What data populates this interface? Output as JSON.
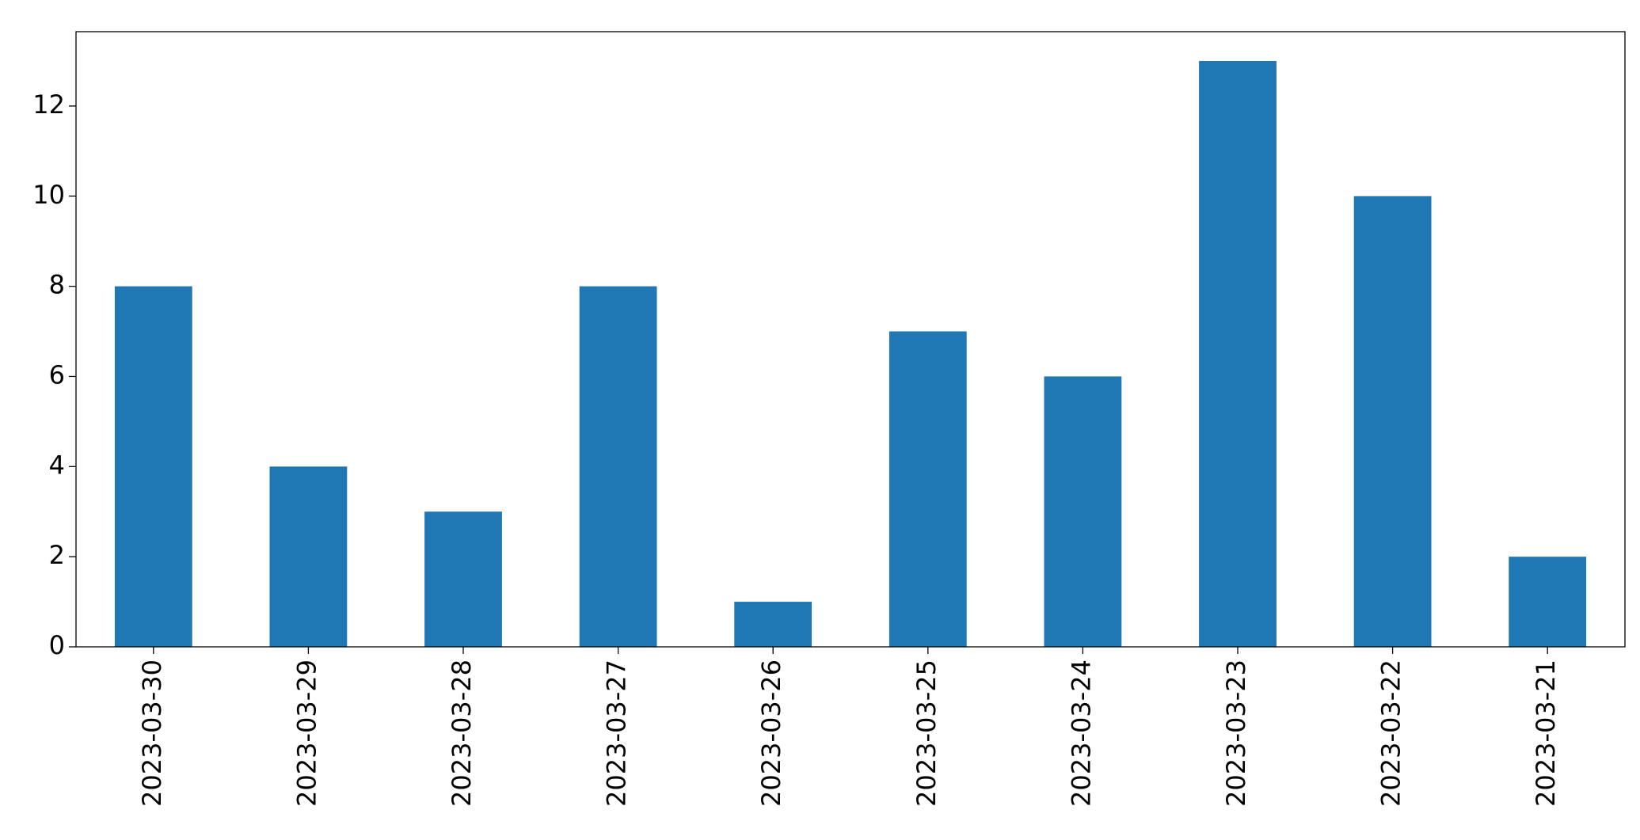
{
  "chart_data": {
    "type": "bar",
    "categories": [
      "2023-03-30",
      "2023-03-29",
      "2023-03-28",
      "2023-03-27",
      "2023-03-26",
      "2023-03-25",
      "2023-03-24",
      "2023-03-23",
      "2023-03-22",
      "2023-03-21"
    ],
    "values": [
      8,
      4,
      3,
      8,
      1,
      7,
      6,
      13,
      10,
      2
    ],
    "color": "#1f77b4",
    "ylim": [
      0,
      13.65
    ],
    "yticks": [
      0,
      2,
      4,
      6,
      8,
      10,
      12
    ],
    "grid": false
  }
}
